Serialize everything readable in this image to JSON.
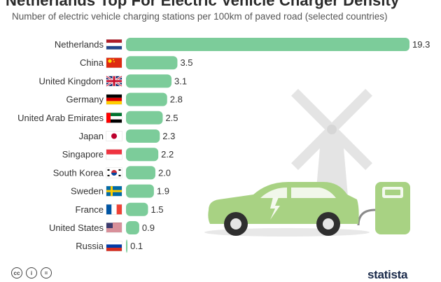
{
  "header": {
    "title": "Netherlands Top For Electric Vehicle Charger Density",
    "subtitle": "Number of electric vehicle charging stations per 100km of paved road (selected countries)"
  },
  "colors": {
    "bar": "#7ccc9a",
    "car": "#a8d283",
    "windmill": "#e2e2e2",
    "charger": "#a8d283"
  },
  "footer": {
    "brand": "statista"
  },
  "chart_data": {
    "type": "bar",
    "orientation": "horizontal",
    "categories": [
      "Netherlands",
      "China",
      "United Kingdom",
      "Germany",
      "United Arab Emirates",
      "Japan",
      "Singapore",
      "South Korea",
      "Sweden",
      "France",
      "United States",
      "Russia"
    ],
    "values": [
      19.3,
      3.5,
      3.1,
      2.8,
      2.5,
      2.3,
      2.2,
      2.0,
      1.9,
      1.5,
      0.9,
      0.1
    ],
    "value_labels": [
      "19.3",
      "3.5",
      "3.1",
      "2.8",
      "2.5",
      "2.3",
      "2.2",
      "2.0",
      "1.9",
      "1.5",
      "0.9",
      "0.1"
    ],
    "xlim": [
      0,
      19.3
    ],
    "grid": false,
    "legend": "none"
  }
}
